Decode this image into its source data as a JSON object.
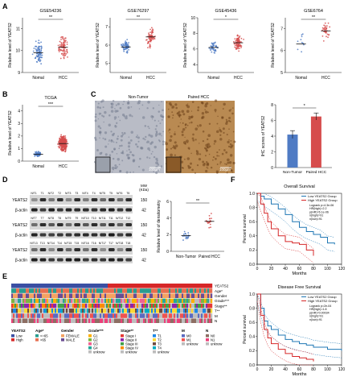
{
  "panel_letters": [
    "A",
    "B",
    "C",
    "D",
    "E",
    "F"
  ],
  "chart_data": [
    {
      "panel": "A",
      "type": "scatter",
      "title": "GSE54236",
      "ylabel": "Relative level of YEATS2",
      "categories": [
        "Nomal",
        "HCC"
      ],
      "ylim": [
        9,
        11.5
      ],
      "yticks": [
        "9",
        "10",
        "11"
      ],
      "significance": "**",
      "means": [
        9.9,
        10.15
      ],
      "n": [
        80,
        80
      ],
      "spread": [
        0.4,
        0.5
      ]
    },
    {
      "panel": "A",
      "type": "scatter",
      "title": "GSE76297",
      "ylabel": "Relative level of YEATS2",
      "categories": [
        "Nomal",
        "HCC"
      ],
      "ylim": [
        4.5,
        7.5
      ],
      "yticks": [
        "5",
        "6",
        "7"
      ],
      "significance": "**",
      "means": [
        5.9,
        6.45
      ],
      "n": [
        60,
        70
      ],
      "spread": [
        0.3,
        0.5
      ]
    },
    {
      "panel": "A",
      "type": "scatter",
      "title": "GSE45436",
      "ylabel": "Relative level of YEATS2",
      "categories": [
        "Nomal",
        "HCC"
      ],
      "ylim": [
        3,
        10
      ],
      "yticks": [
        "4",
        "6",
        "8",
        "10"
      ],
      "significance": "*",
      "means": [
        6.2,
        6.8
      ],
      "n": [
        40,
        90
      ],
      "spread": [
        0.8,
        0.8
      ]
    },
    {
      "panel": "A",
      "type": "scatter",
      "title": "GSE6764",
      "ylabel": "Relative level of YEATS2",
      "categories": [
        "Nomal",
        "HCC"
      ],
      "ylim": [
        5,
        7.5
      ],
      "yticks": [
        "5",
        "6",
        "7"
      ],
      "significance": "**",
      "means": [
        6.3,
        6.9
      ],
      "n": [
        10,
        35
      ],
      "spread": [
        0.5,
        0.4
      ]
    },
    {
      "panel": "B",
      "type": "scatter",
      "title": "TCGA",
      "ylabel": "Relative level of YEATS2",
      "categories": [
        "Nomal",
        "HCC"
      ],
      "ylim": [
        0,
        4.5
      ],
      "yticks": [
        "0",
        "1",
        "2",
        "3",
        "4"
      ],
      "significance": "***",
      "means": [
        0.55,
        1.4
      ],
      "n": [
        50,
        370
      ],
      "spread": [
        0.2,
        0.55
      ]
    },
    {
      "panel": "C",
      "type": "bar",
      "ylabel": "IHC scores of YEATS2",
      "categories": [
        "Non-Tumor",
        "Paired HCC"
      ],
      "values": [
        4.2,
        6.5
      ],
      "errors": [
        0.5,
        0.45
      ],
      "ylim": [
        0,
        8
      ],
      "yticks": [
        "0",
        "2",
        "4",
        "6",
        "8"
      ],
      "significance": "*",
      "colors": [
        "#4f7bc4",
        "#d64d4d"
      ]
    },
    {
      "panel": "D",
      "type": "scatter",
      "ylabel": "Relative level of densitometry",
      "categories": [
        "Non-Tumor",
        "Paired HCC"
      ],
      "ylim": [
        0,
        6
      ],
      "yticks": [
        "0",
        "2",
        "4",
        "6"
      ],
      "significance": "**",
      "means": [
        1.9,
        3.6
      ],
      "n": [
        20,
        20
      ],
      "spread": [
        0.5,
        0.9
      ]
    },
    {
      "panel": "F",
      "type": "line",
      "title": "Overall Survival",
      "ylabel": "Percent survival",
      "xlabel": "Months",
      "xlim": [
        0,
        120
      ],
      "ylim": [
        0,
        1
      ],
      "xticks": [
        "0",
        "20",
        "40",
        "60",
        "80",
        "100",
        "120"
      ],
      "yticks": [
        "0.0",
        "0.2",
        "0.4",
        "0.6",
        "0.8",
        "1.0"
      ],
      "series": [
        {
          "name": "Low YEATS2 Group",
          "color": "#1f77b4",
          "x": [
            0,
            5,
            10,
            20,
            30,
            40,
            50,
            60,
            70,
            80,
            90,
            100,
            110
          ],
          "y": [
            1,
            0.96,
            0.92,
            0.85,
            0.78,
            0.7,
            0.6,
            0.52,
            0.46,
            0.42,
            0.38,
            0.3,
            0.28
          ]
        },
        {
          "name": "High YEATS2 Group",
          "color": "#d62728",
          "x": [
            0,
            5,
            10,
            15,
            20,
            30,
            40,
            50,
            60,
            70,
            80
          ],
          "y": [
            1,
            0.85,
            0.72,
            0.6,
            0.5,
            0.4,
            0.32,
            0.3,
            0.28,
            0.2,
            0.12
          ]
        }
      ],
      "annotation": [
        "Logrank p=4.3e-06",
        "HR(high)=2.2",
        "p(HR)=6.1e-06",
        "n(high)=91",
        "n(low)=91"
      ]
    },
    {
      "panel": "F",
      "type": "line",
      "title": "Disease Free Survival",
      "ylabel": "Percent survival",
      "xlabel": "Months",
      "xlim": [
        0,
        120
      ],
      "ylim": [
        0,
        1
      ],
      "xticks": [
        "0",
        "20",
        "40",
        "60",
        "80",
        "100",
        "120"
      ],
      "yticks": [
        "0.0",
        "0.2",
        "0.4",
        "0.6",
        "0.8",
        "1.0"
      ],
      "series": [
        {
          "name": "Low YEATS2 Group",
          "color": "#1f77b4",
          "x": [
            0,
            5,
            10,
            15,
            20,
            30,
            40,
            50,
            60,
            70,
            80,
            100,
            120
          ],
          "y": [
            1,
            0.8,
            0.62,
            0.55,
            0.5,
            0.42,
            0.36,
            0.33,
            0.3,
            0.28,
            0.25,
            0.22,
            0.2
          ]
        },
        {
          "name": "High YEATS2 Group",
          "color": "#d62728",
          "x": [
            0,
            5,
            10,
            15,
            20,
            30,
            40,
            50,
            60,
            70,
            80
          ],
          "y": [
            1,
            0.7,
            0.5,
            0.38,
            0.3,
            0.22,
            0.16,
            0.12,
            0.1,
            0.08,
            0.05
          ]
        }
      ],
      "annotation": [
        "Logrank p=2e-04",
        "HR(high)=1.8",
        "p(HR)=0.00034",
        "n(high)=91",
        "n(low)=91"
      ]
    }
  ],
  "panelC": {
    "labels": [
      "Non-Tumor",
      "Paired HCC"
    ],
    "scalebar": "100μm"
  },
  "panelD": {
    "mw_label": "MW",
    "mw_unit": "(KDa)",
    "rows": [
      {
        "label": "YEATS2",
        "mw": "150",
        "lanes": [
          "N/T1",
          "T1",
          "N/T2",
          "T2",
          "N/T3",
          "T3",
          "N/T4",
          "T4",
          "N/T5",
          "T5",
          "N/T6",
          "T6"
        ]
      },
      {
        "label": "β-actin",
        "mw": "42"
      },
      {
        "label": "YEATS2",
        "mw": "150",
        "lanes": [
          "N/T7",
          "T7",
          "N/T8",
          "T8",
          "N/T9",
          "T9",
          "N/T10",
          "T10",
          "N/T11",
          "T11",
          "N/T12",
          "T12"
        ]
      },
      {
        "label": "β-actin",
        "mw": "42"
      },
      {
        "label": "YEATS2",
        "mw": "150",
        "lanes": [
          "N/T13",
          "T13",
          "N/T14",
          "T14",
          "N/T15",
          "T15",
          "N/T16",
          "T16",
          "N/T17",
          "T17",
          "N/T18",
          "T18"
        ]
      },
      {
        "label": "β-actin",
        "mw": "42"
      }
    ]
  },
  "panelE": {
    "track_labels": [
      "YEATS2",
      "Age*",
      "Gender",
      "Grade***",
      "Stage**",
      "T**",
      "M",
      "N"
    ],
    "legend": [
      {
        "title": "YEATS2",
        "items": [
          {
            "label": "Low",
            "color": "#3b4fa3"
          },
          {
            "label": "High",
            "color": "#d62728"
          }
        ]
      },
      {
        "title": "Age*",
        "items": [
          {
            "label": "<=65",
            "color": "#2a9d8f"
          },
          {
            "label": ">65",
            "color": "#e76f51"
          }
        ]
      },
      {
        "title": "Gender",
        "items": [
          {
            "label": "FEMALE",
            "color": "#f4a261"
          },
          {
            "label": "MALE",
            "color": "#6a4c93"
          }
        ]
      },
      {
        "title": "Grade***",
        "items": [
          {
            "label": "G1",
            "color": "#ffb000"
          },
          {
            "label": "G2",
            "color": "#7cb342"
          },
          {
            "label": "G3",
            "color": "#f06292"
          },
          {
            "label": "G4",
            "color": "#26a69a"
          },
          {
            "label": "unknow",
            "color": "#bdbdbd"
          }
        ]
      },
      {
        "title": "Stage**",
        "items": [
          {
            "label": "Stage I",
            "color": "#e53935"
          },
          {
            "label": "Stage II",
            "color": "#8e24aa"
          },
          {
            "label": "Stage III",
            "color": "#43a047"
          },
          {
            "label": "Stage IV",
            "color": "#fb8c00"
          },
          {
            "label": "unknow",
            "color": "#bdbdbd"
          }
        ]
      },
      {
        "title": "T**",
        "items": [
          {
            "label": "T1",
            "color": "#1e88e5"
          },
          {
            "label": "T2",
            "color": "#fdd835"
          },
          {
            "label": "T3",
            "color": "#6d4c41"
          },
          {
            "label": "T4",
            "color": "#00acc1"
          },
          {
            "label": "unknow",
            "color": "#bdbdbd"
          }
        ]
      },
      {
        "title": "M",
        "items": [
          {
            "label": "M0",
            "color": "#5c6bc0"
          },
          {
            "label": "M1",
            "color": "#ef5350"
          },
          {
            "label": "unknow",
            "color": "#bdbdbd"
          }
        ]
      },
      {
        "title": "N",
        "items": [
          {
            "label": "N0",
            "color": "#8d6e63"
          },
          {
            "label": "N1",
            "color": "#ec407a"
          },
          {
            "label": "unknow",
            "color": "#bdbdbd"
          }
        ]
      }
    ]
  }
}
